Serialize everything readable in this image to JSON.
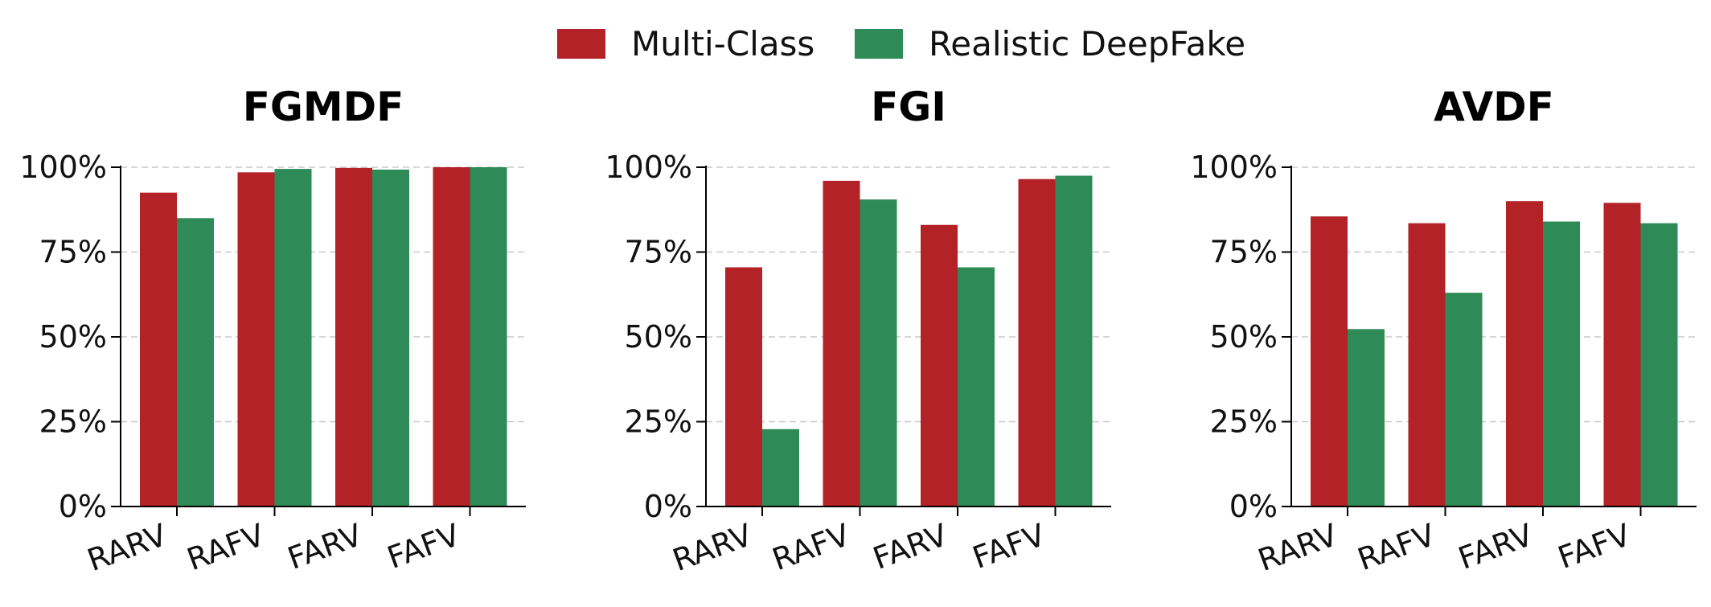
{
  "legend": {
    "items": [
      {
        "label": "Multi-Class",
        "color": "#b22226"
      },
      {
        "label": "Realistic DeepFake",
        "color": "#2e8b57"
      }
    ]
  },
  "chart_data": [
    {
      "type": "bar",
      "title": "FGMDF",
      "categories": [
        "RARV",
        "RAFV",
        "FARV",
        "FAFV"
      ],
      "ylim": [
        0,
        100
      ],
      "yticks": [
        "0%",
        "25%",
        "50%",
        "75%",
        "100%"
      ],
      "grid": "y-dashed",
      "series": [
        {
          "name": "Multi-Class",
          "color": "#b22226",
          "values": [
            92.5,
            98.5,
            99.8,
            100
          ]
        },
        {
          "name": "Realistic DeepFake",
          "color": "#2e8b57",
          "values": [
            85.0,
            99.5,
            99.3,
            100
          ]
        }
      ]
    },
    {
      "type": "bar",
      "title": "FGI",
      "categories": [
        "RARV",
        "RAFV",
        "FARV",
        "FAFV"
      ],
      "ylim": [
        0,
        100
      ],
      "yticks": [
        "0%",
        "25%",
        "50%",
        "75%",
        "100%"
      ],
      "grid": "y-dashed",
      "series": [
        {
          "name": "Multi-Class",
          "color": "#b22226",
          "values": [
            70.5,
            96.0,
            83.0,
            96.5
          ]
        },
        {
          "name": "Realistic DeepFake",
          "color": "#2e8b57",
          "values": [
            22.8,
            90.5,
            70.5,
            97.5
          ]
        }
      ]
    },
    {
      "type": "bar",
      "title": "AVDF",
      "categories": [
        "RARV",
        "RAFV",
        "FARV",
        "FAFV"
      ],
      "ylim": [
        0,
        100
      ],
      "yticks": [
        "0%",
        "25%",
        "50%",
        "75%",
        "100%"
      ],
      "grid": "y-dashed",
      "series": [
        {
          "name": "Multi-Class",
          "color": "#b22226",
          "values": [
            85.5,
            83.5,
            90.0,
            89.5
          ]
        },
        {
          "name": "Realistic DeepFake",
          "color": "#2e8b57",
          "values": [
            52.3,
            63.0,
            84.0,
            83.5
          ]
        }
      ]
    }
  ]
}
